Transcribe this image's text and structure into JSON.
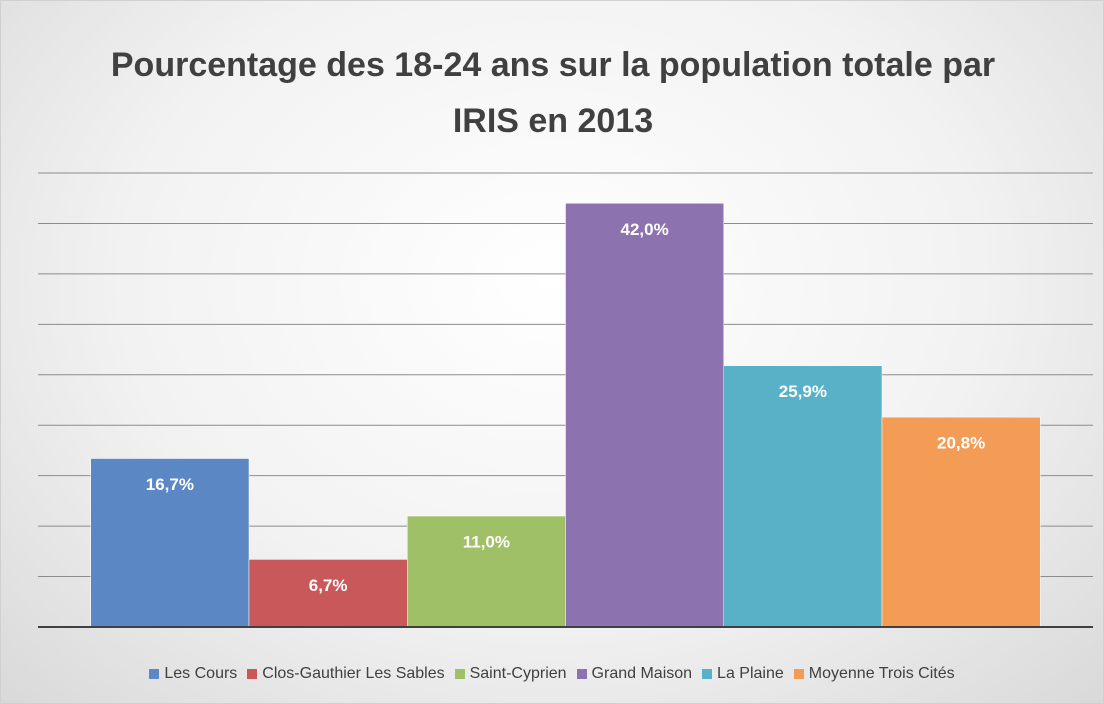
{
  "chart_data": {
    "type": "bar",
    "title": "Pourcentage des 18-24 ans sur la population totale par IRIS en 2013",
    "categories": [
      null
    ],
    "series": [
      {
        "name": "Les Cours",
        "color": "#5b87c5",
        "values": [
          16.7
        ],
        "value_labels": [
          "16,7%"
        ]
      },
      {
        "name": "Clos-Gauthier Les Sables",
        "color": "#c9585a",
        "values": [
          6.7
        ],
        "value_labels": [
          "6,7%"
        ]
      },
      {
        "name": "Saint-Cyprien",
        "color": "#9fc066",
        "values": [
          11.0
        ],
        "value_labels": [
          "11,0%"
        ]
      },
      {
        "name": "Grand Maison",
        "color": "#8c72ae",
        "values": [
          42.0
        ],
        "value_labels": [
          "42,0%"
        ]
      },
      {
        "name": "La Plaine",
        "color": "#59b1c8",
        "values": [
          25.9
        ],
        "value_labels": [
          "25,9%"
        ]
      },
      {
        "name": "Moyenne Trois Cités",
        "color": "#f39c55",
        "values": [
          20.8
        ],
        "value_labels": [
          "20,8%"
        ]
      }
    ],
    "ylim": [
      0,
      45
    ],
    "yticks": [
      0,
      5,
      10,
      15,
      20,
      25,
      30,
      35,
      40,
      45
    ],
    "grid": true,
    "legend": "bottom"
  }
}
